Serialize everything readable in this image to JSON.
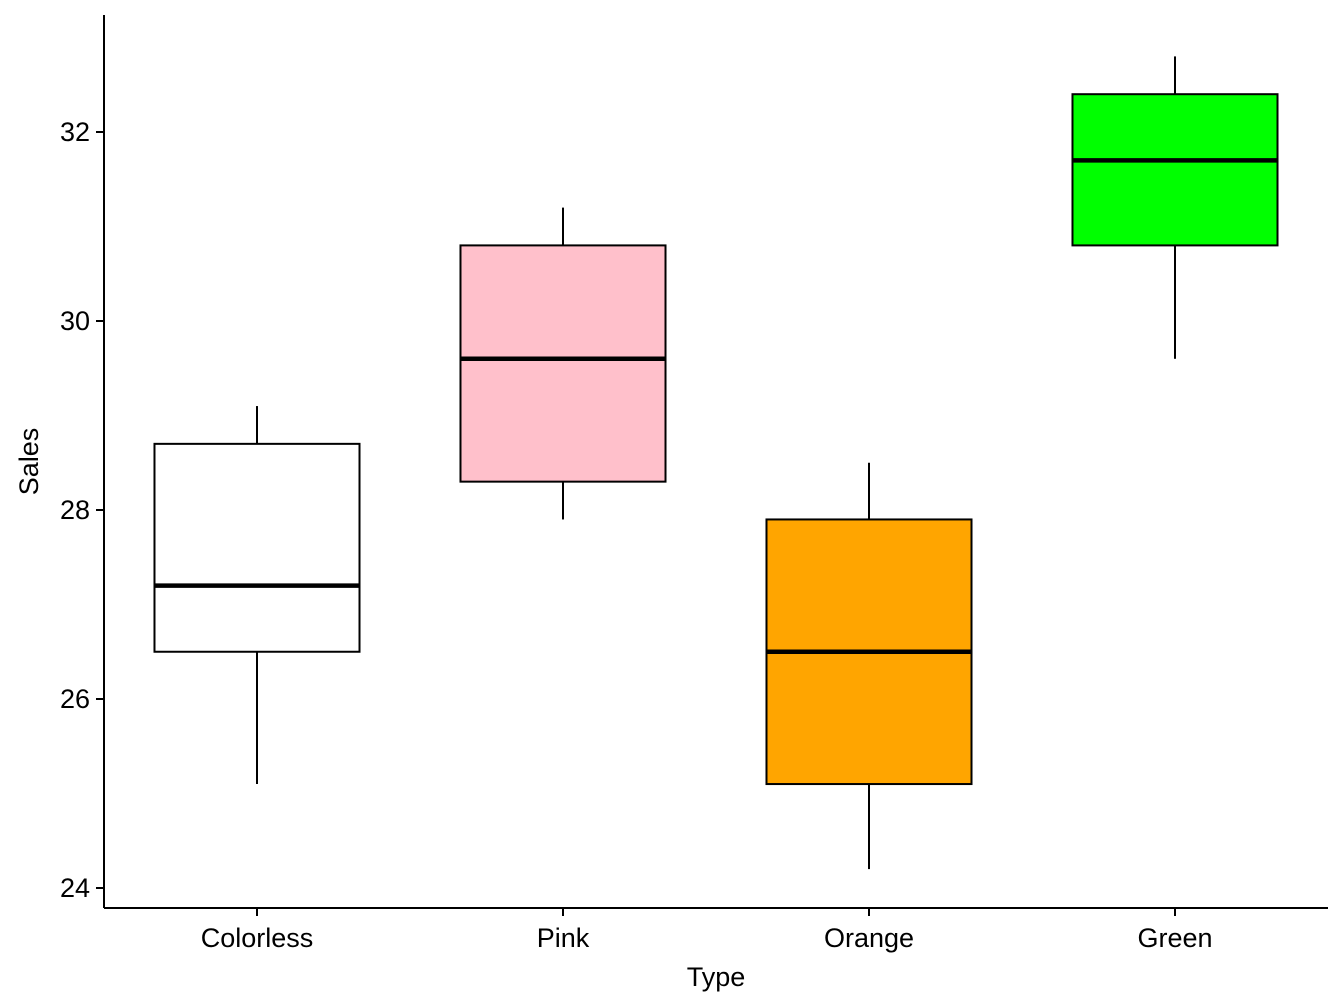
{
  "chart_data": {
    "type": "boxplot",
    "title": "",
    "xlabel": "Type",
    "ylabel": "Sales",
    "ylim": [
      23.8,
      33.3
    ],
    "yticks": [
      24,
      26,
      28,
      30,
      32
    ],
    "grid": false,
    "legend": "none",
    "categories": [
      "Colorless",
      "Pink",
      "Orange",
      "Green"
    ],
    "fill_colors": [
      "#ffffff",
      "#ffc0cb",
      "#ffa500",
      "#00ff00"
    ],
    "boxes": [
      {
        "category": "Colorless",
        "min": 25.1,
        "q1": 26.5,
        "median": 27.2,
        "q3": 28.7,
        "max": 29.1
      },
      {
        "category": "Pink",
        "min": 27.9,
        "q1": 28.3,
        "median": 29.6,
        "q3": 30.8,
        "max": 31.2
      },
      {
        "category": "Orange",
        "min": 24.2,
        "q1": 25.1,
        "median": 26.5,
        "q3": 27.9,
        "max": 28.5
      },
      {
        "category": "Green",
        "min": 29.6,
        "q1": 30.8,
        "median": 31.7,
        "q3": 32.4,
        "max": 32.8
      }
    ]
  }
}
